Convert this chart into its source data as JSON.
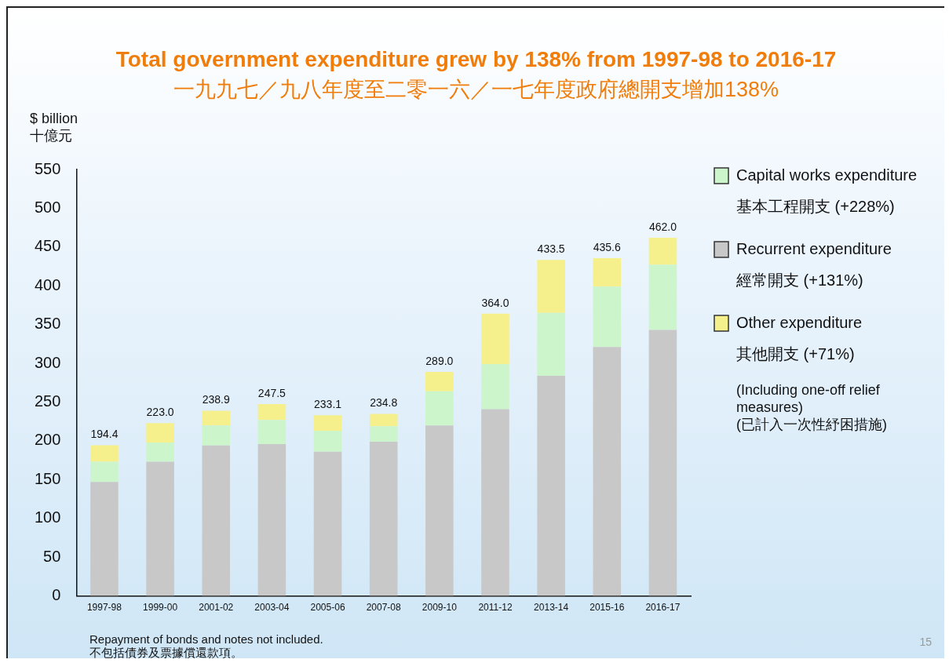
{
  "chart_data": {
    "type": "bar",
    "stacked": true,
    "title": "Total government expenditure grew by 138% from 1997-98 to 2016-17",
    "subtitle": "一九九七／九八年度至二零一六／一七年度政府總開支增加138%",
    "ylabel": "$ billion\n十億元",
    "categories": [
      "1997-98",
      "1999-00",
      "2001-02",
      "2003-04",
      "2005-06",
      "2007-08",
      "2009-10",
      "2011-12",
      "2013-14",
      "2015-16",
      "2016-17"
    ],
    "series": [
      {
        "name": "Recurrent expenditure\n經常開支 (+131%)",
        "color": "#c8c8c8",
        "values": [
          147,
          173,
          194,
          196,
          186,
          199,
          220,
          241,
          284,
          321,
          343
        ]
      },
      {
        "name": "Capital works expenditure\n基本工程開支 (+228%)",
        "color": "#ccf5cc",
        "values": [
          26,
          25,
          26,
          31,
          27,
          20,
          44,
          58,
          81,
          78,
          84
        ]
      },
      {
        "name": "Other expenditure\n其他開支 (+71%)",
        "color": "#f5f08c",
        "values": [
          21.4,
          25,
          18.9,
          20.5,
          20.1,
          15.8,
          25,
          65,
          68.5,
          36.6,
          35
        ]
      }
    ],
    "totals": [
      "194.4",
      "223.0",
      "238.9",
      "247.5",
      "233.1",
      "234.8",
      "289.0",
      "364.0",
      "433.5",
      "435.6",
      "462.0"
    ],
    "ylim": [
      0,
      550
    ],
    "yticks": [
      0,
      50,
      100,
      150,
      200,
      250,
      300,
      350,
      400,
      450,
      500,
      550
    ],
    "grid": false,
    "legend": "right",
    "annotations": [
      "(Including one-off relief measures)\n(已計入一次性紓困措施)",
      "Repayment of bonds and notes not included.\n不包括債券及票據償還款項。",
      "15"
    ]
  }
}
